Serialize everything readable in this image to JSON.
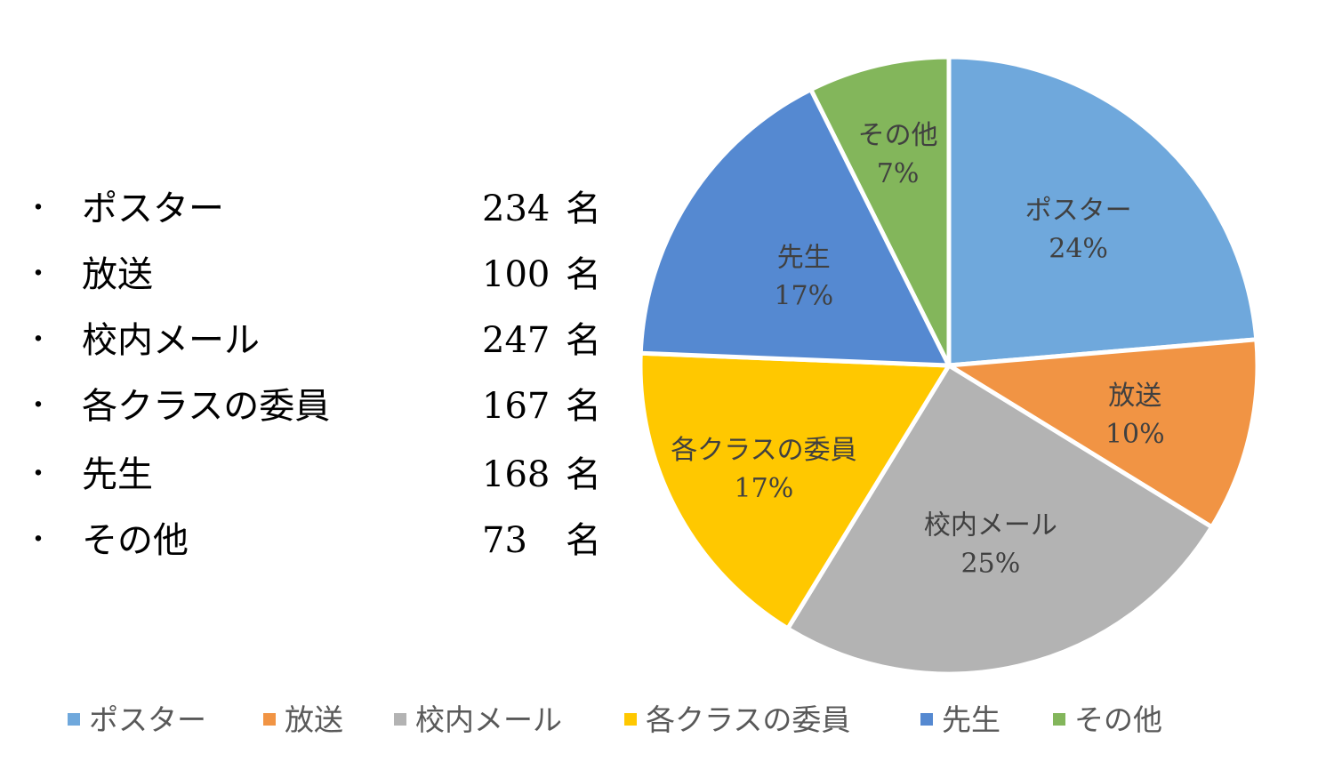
{
  "bullet_list": [
    {
      "bullet": "・",
      "label": "ポスター",
      "count": "234",
      "unit": "名"
    },
    {
      "bullet": "・",
      "label": "放送",
      "count": "100",
      "unit": "名"
    },
    {
      "bullet": "・",
      "label": "校内メール",
      "count": "247",
      "unit": "名"
    },
    {
      "bullet": "・",
      "label": "各クラスの委員",
      "count": "167",
      "unit": "名"
    },
    {
      "bullet": "・",
      "label": "先生",
      "count": "168",
      "unit": "名"
    },
    {
      "bullet": "・",
      "label": "その他",
      "count": "73",
      "unit": "名"
    }
  ],
  "chart_data": {
    "type": "pie",
    "title": "",
    "legend_position": "bottom",
    "start_angle_deg": 0,
    "direction": "clockwise",
    "slices": [
      {
        "name": "ポスター",
        "value": 234,
        "percent_label": "24%",
        "color": "#6FA8DC"
      },
      {
        "name": "放送",
        "value": 100,
        "percent_label": "10%",
        "color": "#F19444"
      },
      {
        "name": "校内メール",
        "value": 247,
        "percent_label": "25%",
        "color": "#B3B3B3"
      },
      {
        "name": "各クラスの委員",
        "value": 167,
        "percent_label": "17%",
        "color": "#FFC800"
      },
      {
        "name": "先生",
        "value": 168,
        "percent_label": "17%",
        "color": "#5589D1"
      },
      {
        "name": "その他",
        "value": 73,
        "percent_label": "7%",
        "color": "#83B65B"
      }
    ]
  }
}
